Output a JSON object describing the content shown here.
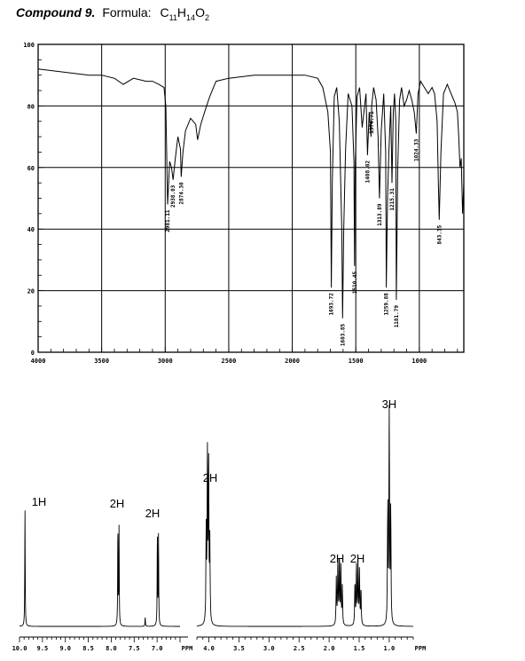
{
  "header": {
    "compound": "Compound 9.",
    "formula_label": "Formula:",
    "formula": {
      "c": "C",
      "c_n": "11",
      "h": "H",
      "h_n": "14",
      "o": "O",
      "o_n": "2"
    }
  },
  "chart_data": [
    {
      "type": "line",
      "title": "",
      "xlabel": "",
      "ylabel": "",
      "xlim": [
        4000,
        650
      ],
      "ylim": [
        0,
        100
      ],
      "x_reversed": true,
      "grid": true,
      "x_ticks": [
        4000,
        3500,
        3000,
        2500,
        2000,
        1500,
        1000
      ],
      "x_tick_labels": [
        "4000",
        "3500",
        "3000",
        "2500",
        "2000",
        "1500",
        "1000"
      ],
      "y_ticks": [
        0,
        20,
        40,
        60,
        80,
        100
      ],
      "y_tick_labels": [
        "0",
        "20",
        "40",
        "60",
        "80",
        "100"
      ],
      "series": [
        {
          "x": [
            4000,
            3800,
            3600,
            3500,
            3400,
            3330,
            3250,
            3150,
            3100,
            3050,
            3010,
            2995,
            2981,
            2965,
            2950,
            2938,
            2920,
            2900,
            2880,
            2874,
            2860,
            2840,
            2800,
            2760,
            2745,
            2720,
            2690,
            2650,
            2600,
            2500,
            2300,
            2100,
            1900,
            1800,
            1760,
            1720,
            1700,
            1693,
            1685,
            1670,
            1650,
            1630,
            1610,
            1604,
            1595,
            1580,
            1560,
            1530,
            1515,
            1510,
            1505,
            1490,
            1470,
            1450,
            1420,
            1408,
            1395,
            1380,
            1375,
            1360,
            1340,
            1325,
            1314,
            1300,
            1280,
            1265,
            1260,
            1250,
            1240,
            1225,
            1215,
            1205,
            1195,
            1185,
            1181,
            1170,
            1155,
            1140,
            1120,
            1100,
            1080,
            1060,
            1040,
            1024,
            1010,
            990,
            960,
            930,
            900,
            880,
            860,
            850,
            843,
            830,
            810,
            780,
            760,
            740,
            720,
            700,
            690,
            680,
            670,
            660,
            650
          ],
          "y": [
            92,
            91,
            90,
            90,
            89,
            87,
            89,
            88,
            88,
            87,
            86,
            80,
            48,
            62,
            60,
            56,
            63,
            70,
            66,
            57,
            65,
            72,
            76,
            74,
            69,
            74,
            78,
            83,
            88,
            89,
            90,
            90,
            90,
            89,
            86,
            78,
            65,
            21,
            55,
            83,
            86,
            75,
            40,
            11,
            40,
            66,
            84,
            80,
            62,
            28,
            60,
            83,
            86,
            73,
            84,
            64,
            78,
            70,
            80,
            86,
            82,
            70,
            50,
            72,
            84,
            65,
            21,
            50,
            65,
            80,
            55,
            78,
            84,
            75,
            17,
            60,
            82,
            86,
            80,
            82,
            85,
            82,
            78,
            71,
            84,
            88,
            86,
            84,
            86,
            84,
            75,
            55,
            43,
            65,
            84,
            87,
            85,
            83,
            81,
            78,
            70,
            60,
            63,
            45,
            55
          ]
        }
      ],
      "annotations": [
        {
          "x": 2981,
          "label": "2981.11"
        },
        {
          "x": 2938,
          "label": "2938.03"
        },
        {
          "x": 2874,
          "label": "2874.30"
        },
        {
          "x": 1693,
          "label": "1693.72"
        },
        {
          "x": 1604,
          "label": "1603.85"
        },
        {
          "x": 1510,
          "label": "1510.45"
        },
        {
          "x": 1408,
          "label": "1408.02"
        },
        {
          "x": 1375,
          "label": "1374.71"
        },
        {
          "x": 1314,
          "label": "1313.89"
        },
        {
          "x": 1260,
          "label": "1259.88"
        },
        {
          "x": 1215,
          "label": "1215.31"
        },
        {
          "x": 1181,
          "label": "1181.79"
        },
        {
          "x": 1024,
          "label": "1024.33"
        },
        {
          "x": 843,
          "label": "843.35"
        }
      ]
    },
    {
      "type": "line",
      "title": "",
      "xlabel": "PPM",
      "ylabel": "",
      "xlim": [
        10.0,
        6.5
      ],
      "x_reversed": true,
      "grid": false,
      "x_tick_labels": [
        "10.0",
        "9.5",
        "9.0",
        "8.5",
        "8.0",
        "7.5",
        "7.0",
        "PPM"
      ],
      "x_tick_values": [
        10.0,
        9.5,
        9.0,
        8.5,
        8.0,
        7.5,
        7.0
      ],
      "peaks": [
        {
          "x": 9.88,
          "height": 1.0,
          "integration": "1H",
          "lines": [
            [
              9.88,
              1.0
            ]
          ]
        },
        {
          "x": 7.84,
          "height": 0.83,
          "integration": "2H",
          "lines": [
            [
              7.855,
              0.82
            ],
            [
              7.83,
              0.83
            ]
          ]
        },
        {
          "x": 7.26,
          "height": 0.08,
          "integration": "",
          "lines": [
            [
              7.26,
              0.08
            ]
          ]
        },
        {
          "x": 6.98,
          "height": 0.77,
          "integration": "2H",
          "lines": [
            [
              6.995,
              0.76
            ],
            [
              6.97,
              0.77
            ]
          ]
        }
      ]
    },
    {
      "type": "line",
      "title": "",
      "xlabel": "PPM",
      "ylabel": "",
      "xlim": [
        4.2,
        0.6
      ],
      "x_reversed": true,
      "grid": false,
      "x_tick_labels": [
        "4.0",
        "3.5",
        "3.0",
        "2.5",
        "2.0",
        "1.5",
        "1.0",
        "PPM"
      ],
      "x_tick_values": [
        4.0,
        3.5,
        3.0,
        2.5,
        2.0,
        1.5,
        1.0
      ],
      "peaks": [
        {
          "x": 4.02,
          "height": 0.8,
          "integration": "2H",
          "lines": [
            [
              4.045,
              0.44
            ],
            [
              4.025,
              0.8
            ],
            [
              4.005,
              0.75
            ],
            [
              3.985,
              0.4
            ]
          ]
        },
        {
          "x": 1.82,
          "height": 0.32,
          "integration": "2H",
          "lines": [
            [
              1.88,
              0.22
            ],
            [
              1.855,
              0.3
            ],
            [
              1.83,
              0.32
            ],
            [
              1.805,
              0.28
            ],
            [
              1.78,
              0.18
            ]
          ]
        },
        {
          "x": 1.51,
          "height": 0.3,
          "integration": "2H",
          "lines": [
            [
              1.57,
              0.2
            ],
            [
              1.545,
              0.28
            ],
            [
              1.52,
              0.3
            ],
            [
              1.495,
              0.26
            ],
            [
              1.47,
              0.17
            ]
          ]
        },
        {
          "x": 1.0,
          "height": 1.0,
          "integration": "3H",
          "lines": [
            [
              1.025,
              0.56
            ],
            [
              1.0,
              1.0
            ],
            [
              0.975,
              0.54
            ]
          ]
        }
      ]
    }
  ]
}
